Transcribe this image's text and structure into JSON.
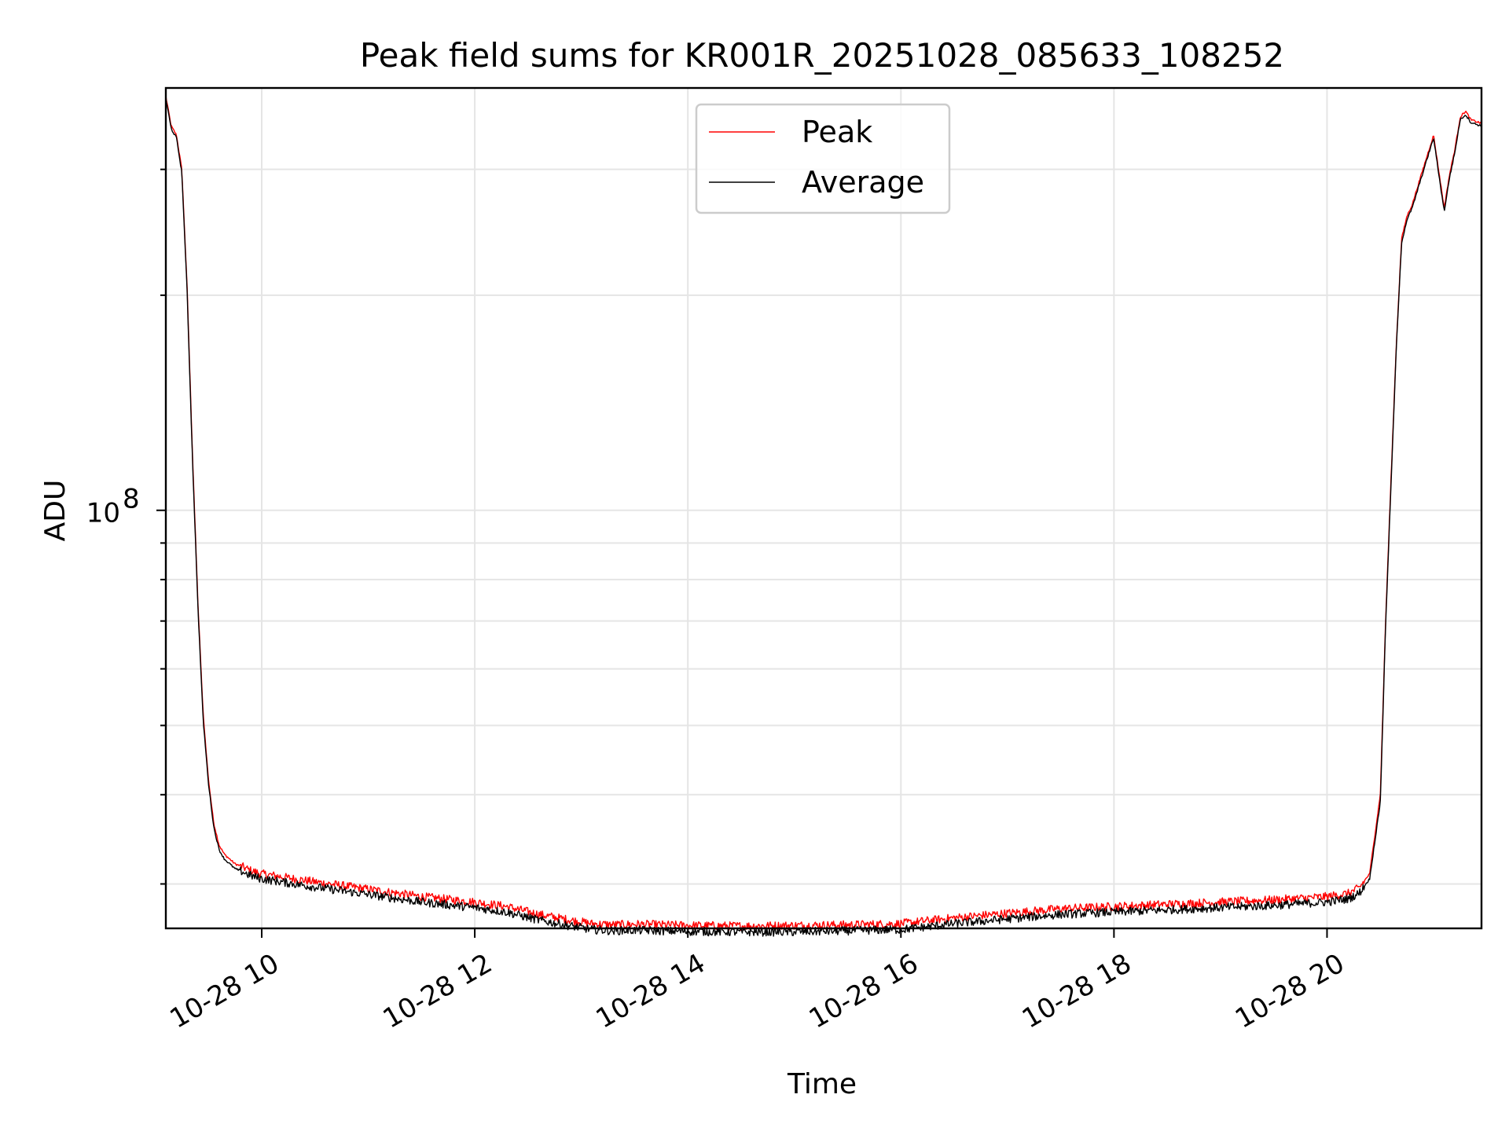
{
  "chart_data": {
    "type": "line",
    "title": "Peak field sums for KR001R_20251028_085633_108252",
    "xlabel": "Time",
    "ylabel": "ADU",
    "yscale": "log",
    "x_range_hours": [
      9.1,
      21.45
    ],
    "y_range": [
      26000000,
      390000000
    ],
    "xticks": [
      {
        "value": 10,
        "label": "10-28 10"
      },
      {
        "value": 12,
        "label": "10-28 12"
      },
      {
        "value": 14,
        "label": "10-28 14"
      },
      {
        "value": 16,
        "label": "10-28 16"
      },
      {
        "value": 18,
        "label": "10-28 18"
      },
      {
        "value": 20,
        "label": "10-28 20"
      }
    ],
    "yticks_major": [
      {
        "value": 100000000,
        "base": "10",
        "exp": "8"
      }
    ],
    "yticks_minor": [
      30000000,
      40000000,
      50000000,
      60000000,
      70000000,
      80000000,
      90000000,
      200000000,
      300000000
    ],
    "grid": true,
    "legend": {
      "position": "upper center",
      "entries": [
        "Peak",
        "Average"
      ]
    },
    "series": [
      {
        "name": "Peak",
        "color": "#ff0000",
        "x": [
          9.1,
          9.15,
          9.2,
          9.25,
          9.3,
          9.35,
          9.4,
          9.45,
          9.5,
          9.55,
          9.6,
          9.65,
          9.7,
          9.75,
          9.8,
          9.9,
          10.0,
          10.5,
          11.0,
          11.5,
          12.0,
          12.3,
          12.6,
          12.9,
          13.1,
          13.3,
          13.5,
          14.0,
          14.5,
          15.0,
          15.5,
          16.0,
          16.5,
          17.0,
          17.5,
          18.0,
          18.5,
          19.0,
          19.5,
          20.0,
          20.2,
          20.3,
          20.4,
          20.5,
          20.55,
          20.6,
          20.65,
          20.7,
          20.75,
          20.8,
          20.9,
          21.0,
          21.1,
          21.15,
          21.2,
          21.25,
          21.3,
          21.35,
          21.4,
          21.45
        ],
        "y": [
          380000000,
          345000000,
          335000000,
          300000000,
          205000000,
          120000000,
          75000000,
          52000000,
          42000000,
          36500000,
          34000000,
          33000000,
          32500000,
          32000000,
          31800000,
          31300000,
          31000000,
          30200000,
          29500000,
          28800000,
          28300000,
          27900000,
          27200000,
          26700000,
          26400000,
          26300000,
          26350000,
          26250000,
          26200000,
          26250000,
          26300000,
          26400000,
          26900000,
          27300000,
          27700000,
          27900000,
          28100000,
          28300000,
          28500000,
          28800000,
          29100000,
          29600000,
          31000000,
          40000000,
          70000000,
          110000000,
          170000000,
          240000000,
          258000000,
          268000000,
          300000000,
          335000000,
          265000000,
          295000000,
          320000000,
          355000000,
          362000000,
          352000000,
          350000000,
          348000000
        ]
      },
      {
        "name": "Average",
        "color": "#000000",
        "x": [
          9.1,
          9.15,
          9.2,
          9.25,
          9.3,
          9.35,
          9.4,
          9.45,
          9.5,
          9.55,
          9.6,
          9.65,
          9.7,
          9.75,
          9.8,
          9.9,
          10.0,
          10.5,
          11.0,
          11.5,
          12.0,
          12.3,
          12.6,
          12.9,
          13.1,
          13.3,
          13.5,
          14.0,
          14.5,
          15.0,
          15.5,
          16.0,
          16.5,
          17.0,
          17.5,
          18.0,
          18.5,
          19.0,
          19.5,
          20.0,
          20.2,
          20.3,
          20.4,
          20.5,
          20.55,
          20.6,
          20.65,
          20.7,
          20.75,
          20.8,
          20.9,
          21.0,
          21.1,
          21.15,
          21.2,
          21.25,
          21.3,
          21.35,
          21.4,
          21.45
        ],
        "y": [
          378000000,
          342000000,
          332000000,
          297000000,
          202000000,
          118000000,
          74000000,
          51000000,
          41500000,
          36000000,
          33500000,
          32500000,
          32000000,
          31500000,
          31300000,
          30800000,
          30500000,
          29700000,
          29000000,
          28300000,
          27800000,
          27400000,
          26700000,
          26200000,
          25900000,
          25800000,
          25850000,
          25750000,
          25700000,
          25700000,
          25800000,
          25900000,
          26400000,
          26800000,
          27200000,
          27400000,
          27600000,
          27800000,
          28000000,
          28300000,
          28600000,
          29100000,
          30500000,
          39000000,
          69000000,
          108000000,
          168000000,
          237000000,
          255000000,
          265000000,
          297000000,
          332000000,
          262000000,
          292000000,
          317000000,
          352000000,
          358000000,
          349000000,
          347000000,
          345000000
        ]
      }
    ]
  }
}
